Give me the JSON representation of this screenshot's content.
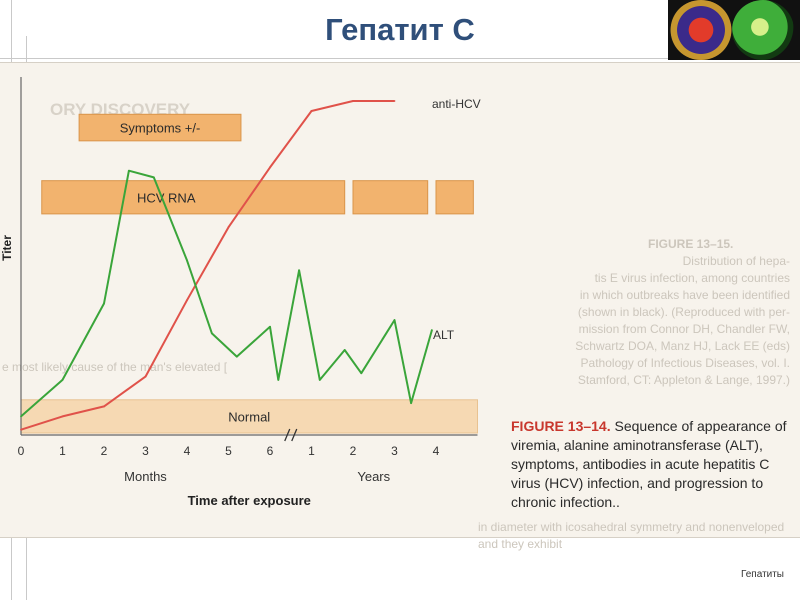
{
  "title": "Гепатит C",
  "footer": "Гепатиты",
  "caption": {
    "label": "FIGURE 13–14.",
    "text": "Sequence of appearance of viremia, alanine aminotransferase (ALT), symptoms, antibodies in acute hepatitis C virus (HCV) infection, and progression to chronic infection.."
  },
  "background_text": {
    "heading": "FIGURE 13–15.",
    "lines": [
      "Distribution of hepa-",
      "tis E virus infection, among countries",
      "in which outbreaks have been identified",
      "(shown in black). (Reproduced with per-",
      "mission from Connor DH, Chandler FW,",
      "Schwartz DOA, Manz HJ, Lack EE (eds)",
      "Pathology of Infectious Diseases, vol. I.",
      "Stamford, CT: Appleton & Lange, 1997.)"
    ],
    "left_top": "ORY DISCOVERY",
    "left_mid": "e most likely cause of the man's elevated [",
    "left_bottom": "in diameter with icosahedral symmetry and nonenveloped and they exhibit"
  },
  "chart_data": {
    "type": "line",
    "ylabel": "Titer",
    "xlabel": "Time after exposure",
    "x_groups": [
      {
        "label": "Months",
        "ticks": [
          "0",
          "1",
          "2",
          "3",
          "4",
          "5",
          "6"
        ]
      },
      {
        "label": "Years",
        "ticks": [
          "1",
          "2",
          "3",
          "4"
        ]
      }
    ],
    "x_tick_values": [
      0,
      1,
      2,
      3,
      4,
      5,
      6,
      7,
      8,
      9,
      10
    ],
    "axis_break_between": [
      6,
      7
    ],
    "xlim": [
      0,
      11
    ],
    "ylim": [
      0,
      100
    ],
    "grid": false,
    "series": [
      {
        "name": "anti-HCV",
        "color": "#e0524a",
        "points": [
          [
            0,
            1
          ],
          [
            1,
            5
          ],
          [
            2,
            8
          ],
          [
            3,
            17
          ],
          [
            4,
            40
          ],
          [
            5,
            62
          ],
          [
            6,
            80
          ],
          [
            7,
            97
          ],
          [
            8,
            100
          ],
          [
            9,
            100
          ]
        ]
      },
      {
        "name": "ALT",
        "color": "#3aa53a",
        "points": [
          [
            0,
            5
          ],
          [
            1,
            16
          ],
          [
            2,
            39
          ],
          [
            2.6,
            79
          ],
          [
            3.2,
            77
          ],
          [
            4,
            52
          ],
          [
            4.6,
            30
          ],
          [
            5.2,
            23
          ],
          [
            6,
            32
          ],
          [
            6.2,
            16
          ],
          [
            6.7,
            49
          ],
          [
            7.2,
            16
          ],
          [
            7.8,
            25
          ],
          [
            8.2,
            18
          ],
          [
            9,
            34
          ],
          [
            9.4,
            9
          ],
          [
            9.9,
            31
          ]
        ]
      }
    ],
    "bands": [
      {
        "label": "Symptoms +/-",
        "y": [
          88,
          96
        ],
        "segments": [
          [
            1.4,
            5.3
          ]
        ]
      },
      {
        "label": "HCV RNA",
        "y": [
          66,
          76
        ],
        "segments": [
          [
            0.5,
            7.8
          ],
          [
            8,
            9.8
          ],
          [
            10,
            10.9
          ]
        ]
      },
      {
        "label": "Normal",
        "y": [
          0,
          10
        ],
        "segments": [
          [
            0,
            11
          ]
        ]
      }
    ],
    "line_labels": [
      {
        "series": "anti-HCV",
        "text": "anti-HCV"
      },
      {
        "series": "ALT",
        "text": "ALT"
      }
    ]
  }
}
